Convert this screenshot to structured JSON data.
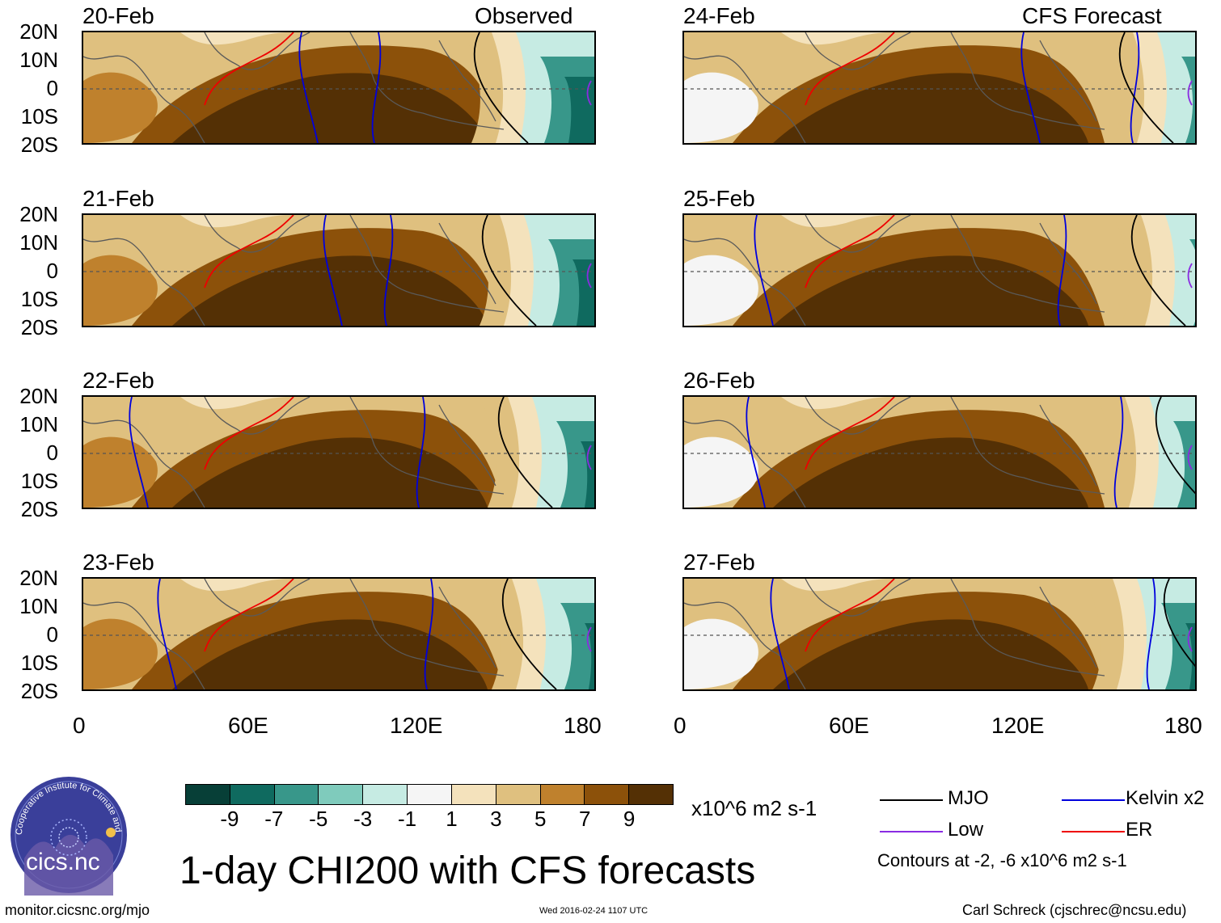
{
  "title": "1-day CHI200 with CFS forecasts",
  "panel_labels": {
    "observed": "Observed",
    "forecast": "CFS Forecast"
  },
  "observed_dates": [
    "20-Feb",
    "21-Feb",
    "22-Feb",
    "23-Feb"
  ],
  "forecast_dates": [
    "24-Feb",
    "25-Feb",
    "26-Feb",
    "27-Feb"
  ],
  "lat_ticks": [
    "20N",
    "10N",
    "0",
    "10S",
    "20S"
  ],
  "lon_ticks": [
    "0",
    "60E",
    "120E",
    "180"
  ],
  "colorbar": {
    "labels": [
      "-9",
      "-7",
      "-5",
      "-3",
      "-1",
      "1",
      "3",
      "5",
      "7",
      "9"
    ],
    "units": "x10^6 m2 s-1",
    "colors": [
      "#073f37",
      "#0f6a5f",
      "#38978a",
      "#7fcbbc",
      "#c6ebe3",
      "#f5f5f5",
      "#f4e2bc",
      "#dfc07f",
      "#bf812d",
      "#8c510a",
      "#543005"
    ]
  },
  "legend": {
    "mjo": "MJO",
    "kelvin": "Kelvin x2",
    "low": "Low",
    "er": "ER",
    "contours_note": "Contours at -2, -6 x10^6 m2 s-1",
    "colors": {
      "mjo": "#000000",
      "kelvin": "#0000dd",
      "low": "#8a2be2",
      "er": "#ee0000"
    }
  },
  "logo_text": "cics.nc",
  "logo_ring_text": "Cooperative Institute for Climate and Satellites",
  "footer": {
    "url": "monitor.cicsnc.org/mjo",
    "timestamp": "Wed 2016-02-24 1107 UTC",
    "credit": "Carl Schreck (cjschrec@ncsu.edu)"
  }
}
